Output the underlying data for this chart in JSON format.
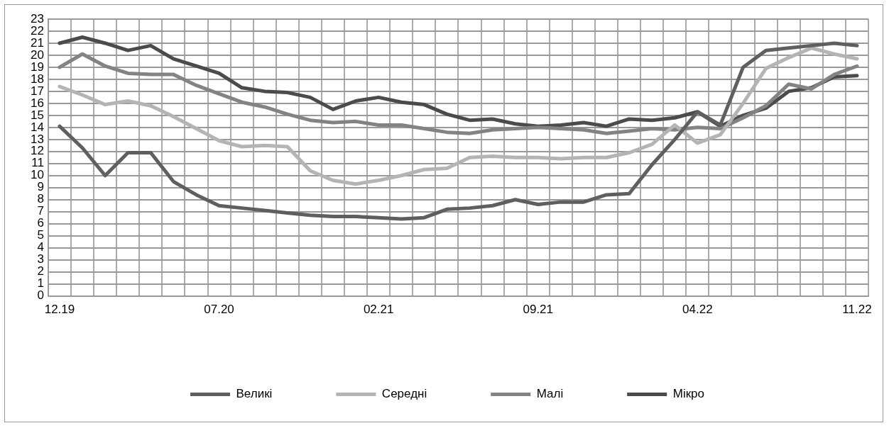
{
  "chart_data": {
    "type": "line",
    "categories": [
      "12.19",
      null,
      null,
      null,
      null,
      null,
      null,
      "07.20",
      null,
      null,
      null,
      null,
      null,
      null,
      "02.21",
      null,
      null,
      null,
      null,
      null,
      null,
      "09.21",
      null,
      null,
      null,
      null,
      null,
      null,
      "04.22",
      null,
      null,
      null,
      null,
      null,
      null,
      "11.22"
    ],
    "series": [
      {
        "name": "Великі",
        "color": "#5f5f5f",
        "values": [
          14.1,
          12.3,
          10.0,
          11.9,
          11.9,
          9.5,
          8.4,
          7.5,
          7.3,
          7.1,
          6.9,
          6.7,
          6.6,
          6.6,
          6.5,
          6.4,
          6.5,
          7.2,
          7.3,
          7.5,
          8.0,
          7.6,
          7.8,
          7.8,
          8.4,
          8.5,
          10.9,
          13.0,
          15.3,
          14.2,
          19.0,
          20.4,
          20.6,
          20.8,
          21.0,
          20.8
        ]
      },
      {
        "name": "Середні",
        "color": "#b4b4b4",
        "values": [
          17.4,
          16.7,
          15.9,
          16.2,
          15.8,
          14.9,
          13.9,
          12.9,
          12.4,
          12.5,
          12.4,
          10.4,
          9.6,
          9.3,
          9.6,
          10.0,
          10.5,
          10.6,
          11.5,
          11.6,
          11.5,
          11.5,
          11.4,
          11.5,
          11.5,
          11.9,
          12.6,
          14.2,
          12.7,
          13.4,
          16.0,
          18.9,
          19.8,
          20.6,
          20.1,
          19.7
        ]
      },
      {
        "name": "Малі",
        "color": "#838383",
        "values": [
          19.0,
          20.1,
          19.1,
          18.5,
          18.4,
          18.4,
          17.5,
          16.8,
          16.1,
          15.7,
          15.1,
          14.6,
          14.4,
          14.5,
          14.2,
          14.2,
          13.9,
          13.6,
          13.5,
          13.8,
          13.9,
          14.0,
          13.9,
          13.8,
          13.5,
          13.7,
          13.9,
          13.8,
          14.0,
          13.9,
          14.8,
          15.8,
          17.6,
          17.2,
          18.4,
          19.1
        ]
      },
      {
        "name": "Мікро",
        "color": "#4b4b4b",
        "values": [
          21.0,
          21.5,
          21.0,
          20.4,
          20.8,
          19.7,
          19.1,
          18.5,
          17.3,
          17.0,
          16.9,
          16.5,
          15.5,
          16.2,
          16.5,
          16.1,
          15.9,
          15.1,
          14.6,
          14.7,
          14.3,
          14.1,
          14.2,
          14.4,
          14.1,
          14.7,
          14.6,
          14.8,
          15.3,
          14.1,
          15.0,
          15.6,
          17.0,
          17.3,
          18.2,
          18.3
        ]
      }
    ],
    "ylim": [
      0,
      23
    ],
    "yticks": [
      0,
      1,
      2,
      3,
      4,
      5,
      6,
      7,
      8,
      9,
      10,
      11,
      12,
      13,
      14,
      15,
      16,
      17,
      18,
      19,
      20,
      21,
      22,
      23
    ],
    "grid": true,
    "legend": "bottom",
    "marker": "none",
    "line_style": "solid"
  }
}
